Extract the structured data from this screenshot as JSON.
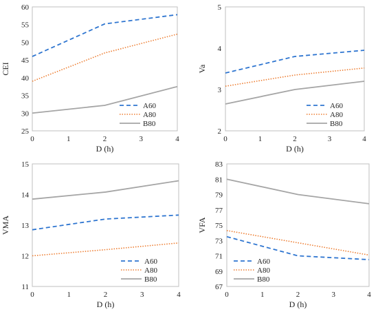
{
  "chart_data": [
    {
      "type": "line",
      "xlabel": "D (h)",
      "ylabel": "CEI",
      "xlim": [
        0,
        4
      ],
      "ylim": [
        25,
        60
      ],
      "xticks": [
        0,
        1,
        2,
        3,
        4
      ],
      "yticks": [
        25,
        30,
        35,
        40,
        45,
        50,
        55,
        60
      ],
      "grid": false,
      "legend": "bottom-right",
      "x": [
        0,
        2,
        4
      ],
      "series": [
        {
          "name": "A60",
          "values": [
            46,
            55.2,
            57.8
          ],
          "color": "#2e75d0",
          "dash": "6,4"
        },
        {
          "name": "A80",
          "values": [
            39,
            47,
            52.3
          ],
          "color": "#ed7d31",
          "dash": "1.5,2"
        },
        {
          "name": "B80",
          "values": [
            30,
            32.2,
            37.5
          ],
          "color": "#a5a5a5",
          "dash": ""
        }
      ]
    },
    {
      "type": "line",
      "xlabel": "D (h)",
      "ylabel": "Va",
      "xlim": [
        0,
        4
      ],
      "ylim": [
        2,
        5
      ],
      "xticks": [
        0,
        1,
        2,
        3,
        4
      ],
      "yticks": [
        2,
        3,
        4,
        5
      ],
      "grid": false,
      "legend": "bottom-right",
      "x": [
        0,
        2,
        4
      ],
      "series": [
        {
          "name": "A60",
          "values": [
            3.4,
            3.8,
            3.95
          ],
          "color": "#2e75d0",
          "dash": "6,4"
        },
        {
          "name": "A80",
          "values": [
            3.08,
            3.35,
            3.52
          ],
          "color": "#ed7d31",
          "dash": "1.5,2"
        },
        {
          "name": "B80",
          "values": [
            2.65,
            3.0,
            3.2
          ],
          "color": "#a5a5a5",
          "dash": ""
        }
      ]
    },
    {
      "type": "line",
      "xlabel": "D (h)",
      "ylabel": "VMA",
      "xlim": [
        0,
        4
      ],
      "ylim": [
        11,
        15
      ],
      "xticks": [
        0,
        1,
        2,
        3,
        4
      ],
      "yticks": [
        11,
        12,
        13,
        14,
        15
      ],
      "grid": false,
      "legend": "bottom-right",
      "x": [
        0,
        2,
        4
      ],
      "series": [
        {
          "name": "A60",
          "values": [
            12.85,
            13.2,
            13.33
          ],
          "color": "#2e75d0",
          "dash": "6,4"
        },
        {
          "name": "A80",
          "values": [
            12.0,
            12.2,
            12.42
          ],
          "color": "#ed7d31",
          "dash": "1.5,2"
        },
        {
          "name": "B80",
          "values": [
            13.85,
            14.08,
            14.45
          ],
          "color": "#a5a5a5",
          "dash": ""
        }
      ]
    },
    {
      "type": "line",
      "xlabel": "D (h)",
      "ylabel": "VFA",
      "xlim": [
        0,
        4
      ],
      "ylim": [
        67,
        83
      ],
      "xticks": [
        0,
        1,
        2,
        3,
        4
      ],
      "yticks": [
        67,
        69,
        71,
        73,
        75,
        77,
        79,
        81,
        83
      ],
      "grid": false,
      "legend": "bottom-left",
      "x": [
        0,
        2,
        4
      ],
      "series": [
        {
          "name": "A60",
          "values": [
            73.5,
            71,
            70.5
          ],
          "color": "#2e75d0",
          "dash": "6,4"
        },
        {
          "name": "A80",
          "values": [
            74.3,
            72.7,
            71.1
          ],
          "color": "#ed7d31",
          "dash": "1.5,2"
        },
        {
          "name": "B80",
          "values": [
            81,
            79,
            77.8
          ],
          "color": "#a5a5a5",
          "dash": ""
        }
      ]
    }
  ]
}
